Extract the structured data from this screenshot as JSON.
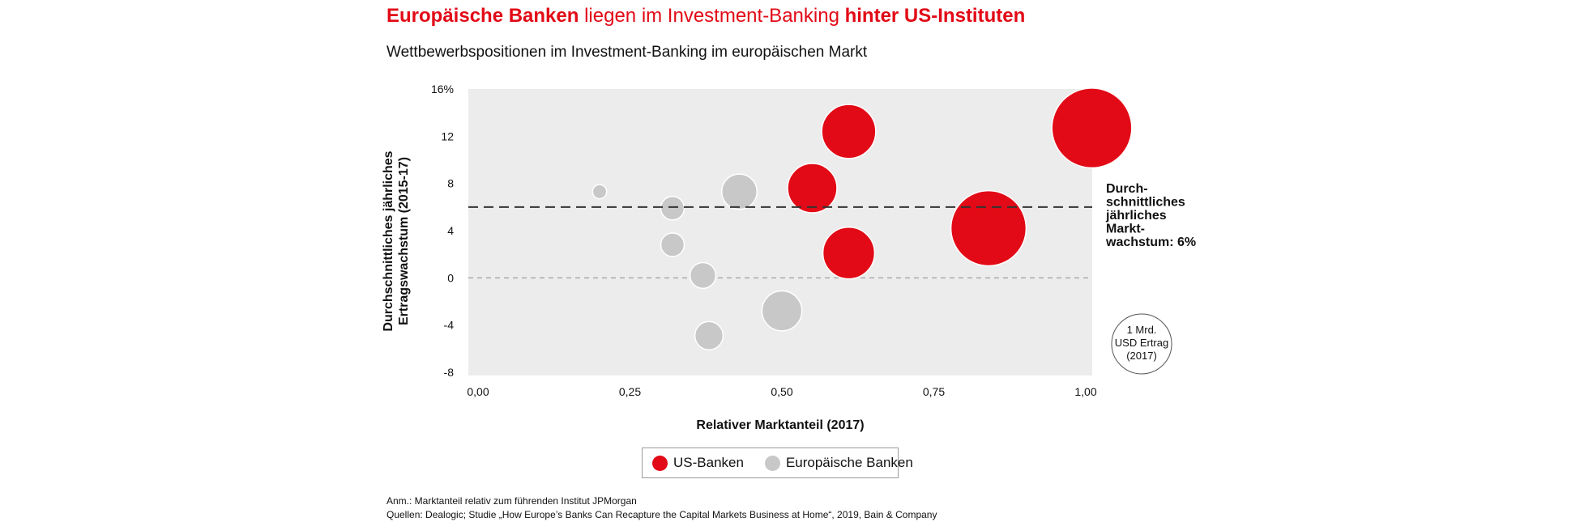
{
  "header": {
    "title_part1": "Europäische Banken",
    "title_part2": " liegen im Investment-Banking ",
    "title_part3": "hinter US-Instituten",
    "subtitle": "Wettbewerbspositionen im Investment-Banking im europäischen Markt"
  },
  "colors": {
    "us": "#e20a16",
    "eu": "#c8c8c8",
    "plot_bg": "#ececec"
  },
  "chart_data": {
    "type": "scatter",
    "variant": "bubble",
    "xlabel": "Relativer Marktanteil (2017)",
    "ylabel": [
      "Durchschnittliches jährliches",
      "Ertragswachstum (2015-17)"
    ],
    "xlim": [
      0,
      1.0
    ],
    "ylim": [
      -8,
      16
    ],
    "x_ticks": [
      "0,00",
      "0,25",
      "0,50",
      "0,75",
      "1,00"
    ],
    "x_tick_values": [
      0,
      0.25,
      0.5,
      0.75,
      1.0
    ],
    "y_ticks": [
      "16%",
      "12",
      "8",
      "4",
      "0",
      "-4",
      "-8"
    ],
    "y_tick_values": [
      16,
      12,
      8,
      4,
      0,
      -4,
      -8
    ],
    "grid": false,
    "reference_line": {
      "y": 6,
      "label": [
        "Durch-",
        "schnittliches",
        "jährliches",
        "Markt-",
        "wachstum: 6%"
      ]
    },
    "zero_line": {
      "y": 0
    },
    "size_legend": {
      "label": [
        "1 Mrd.",
        "USD Ertrag",
        "(2017)"
      ],
      "value": 1
    },
    "series": [
      {
        "name": "US-Banken",
        "points": [
          {
            "x": 0.61,
            "y": 12.4,
            "r": 1.15
          },
          {
            "x": 1.01,
            "y": 12.7,
            "r": 1.7
          },
          {
            "x": 0.55,
            "y": 7.6,
            "r": 1.05
          },
          {
            "x": 0.84,
            "y": 4.2,
            "r": 1.6
          },
          {
            "x": 0.61,
            "y": 2.1,
            "r": 1.1
          }
        ]
      },
      {
        "name": "Europäische Banken",
        "points": [
          {
            "x": 0.2,
            "y": 7.3,
            "r": 0.3
          },
          {
            "x": 0.32,
            "y": 5.9,
            "r": 0.5
          },
          {
            "x": 0.43,
            "y": 7.3,
            "r": 0.75
          },
          {
            "x": 0.32,
            "y": 2.8,
            "r": 0.5
          },
          {
            "x": 0.37,
            "y": 0.2,
            "r": 0.55
          },
          {
            "x": 0.5,
            "y": -2.8,
            "r": 0.85
          },
          {
            "x": 0.38,
            "y": -4.9,
            "r": 0.6
          }
        ]
      }
    ]
  },
  "legend": {
    "us_label": "US-Banken",
    "eu_label": "Europäische Banken"
  },
  "notes": {
    "anm": "Anm.: Marktanteil relativ zum führenden Institut JPMorgan",
    "quellen": "Quellen: Dealogic; Studie „How Europe’s Banks Can Recapture the Capital Markets Business at Home“, 2019, Bain & Company"
  }
}
